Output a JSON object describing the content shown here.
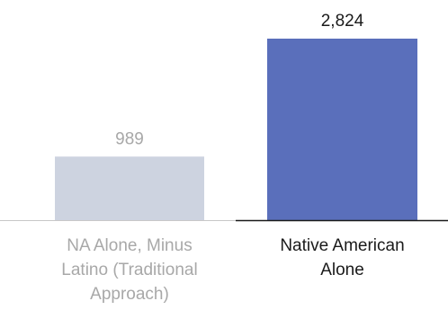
{
  "chart_data": {
    "type": "bar",
    "categories": [
      [
        "NA Alone, Minus",
        "Latino (Traditional",
        "Approach)"
      ],
      [
        "Native American",
        "Alone"
      ]
    ],
    "values": [
      989,
      2824
    ],
    "value_labels": [
      "989",
      "2,824"
    ],
    "colors": [
      "#cdd3e0",
      "#5a6fbb"
    ],
    "label_colors": [
      "#a8a8a8",
      "#1a1a1a"
    ],
    "baseline_colors": [
      "#c8c8c8",
      "#1a1a1a"
    ],
    "ylim": [
      0,
      2824
    ],
    "grid": false,
    "title": "",
    "xlabel": "",
    "ylabel": ""
  }
}
